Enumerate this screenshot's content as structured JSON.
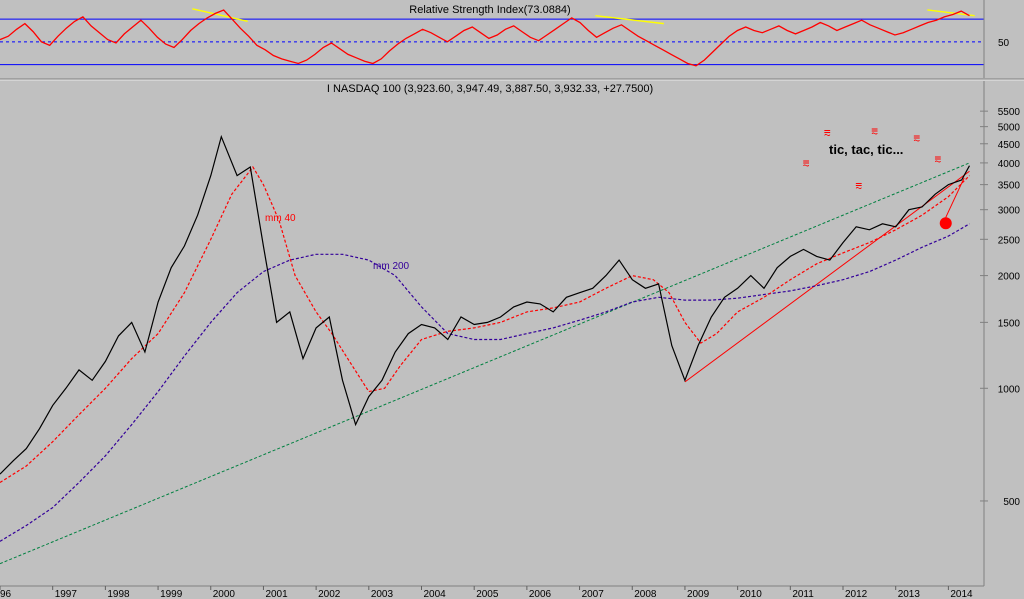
{
  "colors": {
    "background": "#c0c0c0",
    "panel_border": "#808080",
    "price_line": "#000000",
    "rsi_line": "#ff0000",
    "rsi_bands": "#0000ff",
    "ma40": "#ff0000",
    "ma200": "#330099",
    "trend_green": "#008040",
    "trend_red": "#ff0000",
    "divergence": "#ffff00",
    "signal_dot": "#ff0000"
  },
  "chart_data": [
    {
      "type": "line",
      "title": "Relative Strength Index(73.0884)",
      "ylim": [
        20,
        85
      ],
      "yticks": [
        50
      ],
      "ytick_labels": [
        "50"
      ],
      "bands": [
        {
          "name": "upper",
          "value": 70,
          "style": "solid"
        },
        {
          "name": "mid",
          "value": 50,
          "style": "dashed"
        },
        {
          "name": "lower",
          "value": 30,
          "style": "solid"
        }
      ],
      "series": [
        {
          "values": [
            52,
            55,
            61,
            66,
            59,
            50,
            47,
            55,
            62,
            68,
            72,
            64,
            58,
            52,
            49,
            57,
            63,
            69,
            62,
            54,
            48,
            45,
            52,
            60,
            66,
            71,
            75,
            78,
            70,
            62,
            55,
            47,
            43,
            38,
            35,
            33,
            31,
            34,
            39,
            45,
            49,
            44,
            39,
            36,
            33,
            31,
            35,
            42,
            48,
            53,
            57,
            61,
            58,
            54,
            50,
            55,
            60,
            63,
            58,
            53,
            56,
            61,
            64,
            59,
            54,
            51,
            56,
            61,
            66,
            71,
            67,
            60,
            54,
            58,
            62,
            65,
            60,
            55,
            51,
            47,
            43,
            39,
            35,
            31,
            29,
            34,
            41,
            48,
            55,
            60,
            63,
            60,
            58,
            61,
            64,
            60,
            57,
            60,
            63,
            67,
            64,
            60,
            63,
            66,
            69,
            65,
            62,
            59,
            56,
            58,
            61,
            64,
            67,
            69,
            72,
            74,
            77,
            73
          ]
        }
      ],
      "divergence_lines": [
        {
          "x": [
            1999.65,
            2000.7
          ],
          "y": [
            79,
            68
          ]
        },
        {
          "x": [
            2007.3,
            2008.6
          ],
          "y": [
            73,
            66
          ]
        },
        {
          "x": [
            2013.6,
            2014.5
          ],
          "y": [
            78,
            73
          ]
        }
      ]
    },
    {
      "type": "line",
      "title": "I NASDAQ 100 (3,923.60, 3,947.49, 3,887.50, 3,932.33, +27.7500)",
      "xlim": [
        1996.0,
        2014.6
      ],
      "ylim": [
        300,
        6000
      ],
      "yscale": "log",
      "categories": [
        "96",
        "1997",
        "1998",
        "1999",
        "2000",
        "2001",
        "2002",
        "2003",
        "2004",
        "2005",
        "2006",
        "2007",
        "2008",
        "2009",
        "2010",
        "2011",
        "2012",
        "2013",
        "2014"
      ],
      "category_x": [
        1996,
        1997,
        1998,
        1999,
        2000,
        2001,
        2002,
        2003,
        2004,
        2005,
        2006,
        2007,
        2008,
        2009,
        2010,
        2011,
        2012,
        2013,
        2014
      ],
      "yticks": [
        500,
        1000,
        1500,
        2000,
        2500,
        3000,
        3500,
        4000,
        4500,
        5000,
        5500
      ],
      "ytick_labels": [
        "500",
        "1000",
        "1500",
        "2000",
        "2500",
        "3000",
        "3500",
        "4000",
        "4500",
        "5000",
        "5500"
      ],
      "series": [
        {
          "x": [
            1996.0,
            1996.25,
            1996.5,
            1996.75,
            1997.0,
            1997.25,
            1997.5,
            1997.75,
            1998.0,
            1998.25,
            1998.5,
            1998.75,
            1999.0,
            1999.25,
            1999.5,
            1999.75,
            2000.0,
            2000.2,
            2000.5,
            2000.75,
            2001.0,
            2001.25,
            2001.5,
            2001.75,
            2002.0,
            2002.25,
            2002.5,
            2002.75,
            2003.0,
            2003.25,
            2003.5,
            2003.75,
            2004.0,
            2004.25,
            2004.5,
            2004.75,
            2005.0,
            2005.25,
            2005.5,
            2005.75,
            2006.0,
            2006.25,
            2006.5,
            2006.75,
            2007.0,
            2007.25,
            2007.5,
            2007.75,
            2008.0,
            2008.25,
            2008.5,
            2008.75,
            2009.0,
            2009.25,
            2009.5,
            2009.75,
            2010.0,
            2010.25,
            2010.5,
            2010.75,
            2011.0,
            2011.25,
            2011.5,
            2011.75,
            2012.0,
            2012.25,
            2012.5,
            2012.75,
            2013.0,
            2013.25,
            2013.5,
            2013.75,
            2014.0,
            2014.25,
            2014.4
          ],
          "values": [
            590,
            640,
            690,
            780,
            900,
            1000,
            1120,
            1050,
            1180,
            1380,
            1500,
            1250,
            1700,
            2100,
            2400,
            2900,
            3700,
            4700,
            3700,
            3900,
            2400,
            1500,
            1600,
            1200,
            1450,
            1550,
            1050,
            800,
            950,
            1050,
            1250,
            1400,
            1480,
            1450,
            1350,
            1550,
            1480,
            1500,
            1550,
            1650,
            1700,
            1680,
            1600,
            1750,
            1800,
            1850,
            2000,
            2200,
            1950,
            1850,
            1900,
            1300,
            1050,
            1300,
            1550,
            1750,
            1850,
            2000,
            1850,
            2100,
            2250,
            2350,
            2250,
            2200,
            2450,
            2700,
            2650,
            2750,
            2700,
            3000,
            3050,
            3300,
            3500,
            3600,
            3932
          ]
        },
        {
          "name": "mm 40",
          "x": [
            1996.0,
            1996.5,
            1997.0,
            1997.5,
            1998.0,
            1998.5,
            1999.0,
            1999.5,
            2000.0,
            2000.4,
            2000.8,
            2001.0,
            2001.3,
            2001.6,
            2002.0,
            2002.3,
            2002.6,
            2003.0,
            2003.3,
            2003.6,
            2004.0,
            2004.5,
            2005.0,
            2005.5,
            2006.0,
            2006.5,
            2007.0,
            2007.5,
            2008.0,
            2008.4,
            2008.7,
            2009.0,
            2009.3,
            2009.6,
            2010.0,
            2010.5,
            2011.0,
            2011.5,
            2012.0,
            2012.5,
            2013.0,
            2013.5,
            2014.0,
            2014.4
          ],
          "values": [
            560,
            620,
            720,
            850,
            1000,
            1200,
            1400,
            1800,
            2500,
            3300,
            3900,
            3500,
            2800,
            2000,
            1600,
            1400,
            1200,
            980,
            1000,
            1150,
            1350,
            1420,
            1450,
            1500,
            1600,
            1640,
            1700,
            1850,
            2000,
            1950,
            1800,
            1500,
            1320,
            1400,
            1600,
            1750,
            1950,
            2150,
            2300,
            2450,
            2650,
            2900,
            3250,
            3700
          ]
        },
        {
          "name": "mm 200",
          "x": [
            1996.0,
            1996.5,
            1997.0,
            1997.5,
            1998.0,
            1998.5,
            1999.0,
            1999.5,
            2000.0,
            2000.5,
            2001.0,
            2001.5,
            2002.0,
            2002.5,
            2003.0,
            2003.5,
            2004.0,
            2004.5,
            2005.0,
            2005.5,
            2006.0,
            2006.5,
            2007.0,
            2007.5,
            2008.0,
            2008.5,
            2009.0,
            2009.5,
            2010.0,
            2010.5,
            2011.0,
            2011.5,
            2012.0,
            2012.5,
            2013.0,
            2013.5,
            2014.0,
            2014.4
          ],
          "values": [
            390,
            430,
            480,
            560,
            660,
            800,
            980,
            1220,
            1500,
            1800,
            2050,
            2200,
            2280,
            2280,
            2200,
            2000,
            1650,
            1400,
            1350,
            1350,
            1400,
            1450,
            1520,
            1600,
            1700,
            1750,
            1720,
            1720,
            1740,
            1780,
            1820,
            1880,
            1950,
            2050,
            2200,
            2380,
            2550,
            2750
          ]
        }
      ],
      "trend_lines": [
        {
          "color": "green",
          "x": [
            1996.0,
            2014.4
          ],
          "y": [
            340,
            4000
          ]
        },
        {
          "color": "red",
          "x": [
            2009.0,
            2014.4
          ],
          "y": [
            1040,
            3800
          ]
        },
        {
          "color": "red",
          "x": [
            2013.95,
            2014.3
          ],
          "y": [
            2860,
            3650
          ]
        }
      ],
      "signal_dot": {
        "x": 2013.95,
        "y": 2760
      },
      "annotations": {
        "ma40_label": "mm 40",
        "ma200_label": "mm 200",
        "note": "tic, tac, tic...",
        "alarm_symbol": "⩳"
      },
      "alarm_marks": [
        {
          "x": 2011.3,
          "y": 3900
        },
        {
          "x": 2011.7,
          "y": 4700
        },
        {
          "x": 2012.3,
          "y": 3400
        },
        {
          "x": 2012.6,
          "y": 4750
        },
        {
          "x": 2013.4,
          "y": 4550
        },
        {
          "x": 2013.8,
          "y": 4000
        }
      ]
    }
  ]
}
